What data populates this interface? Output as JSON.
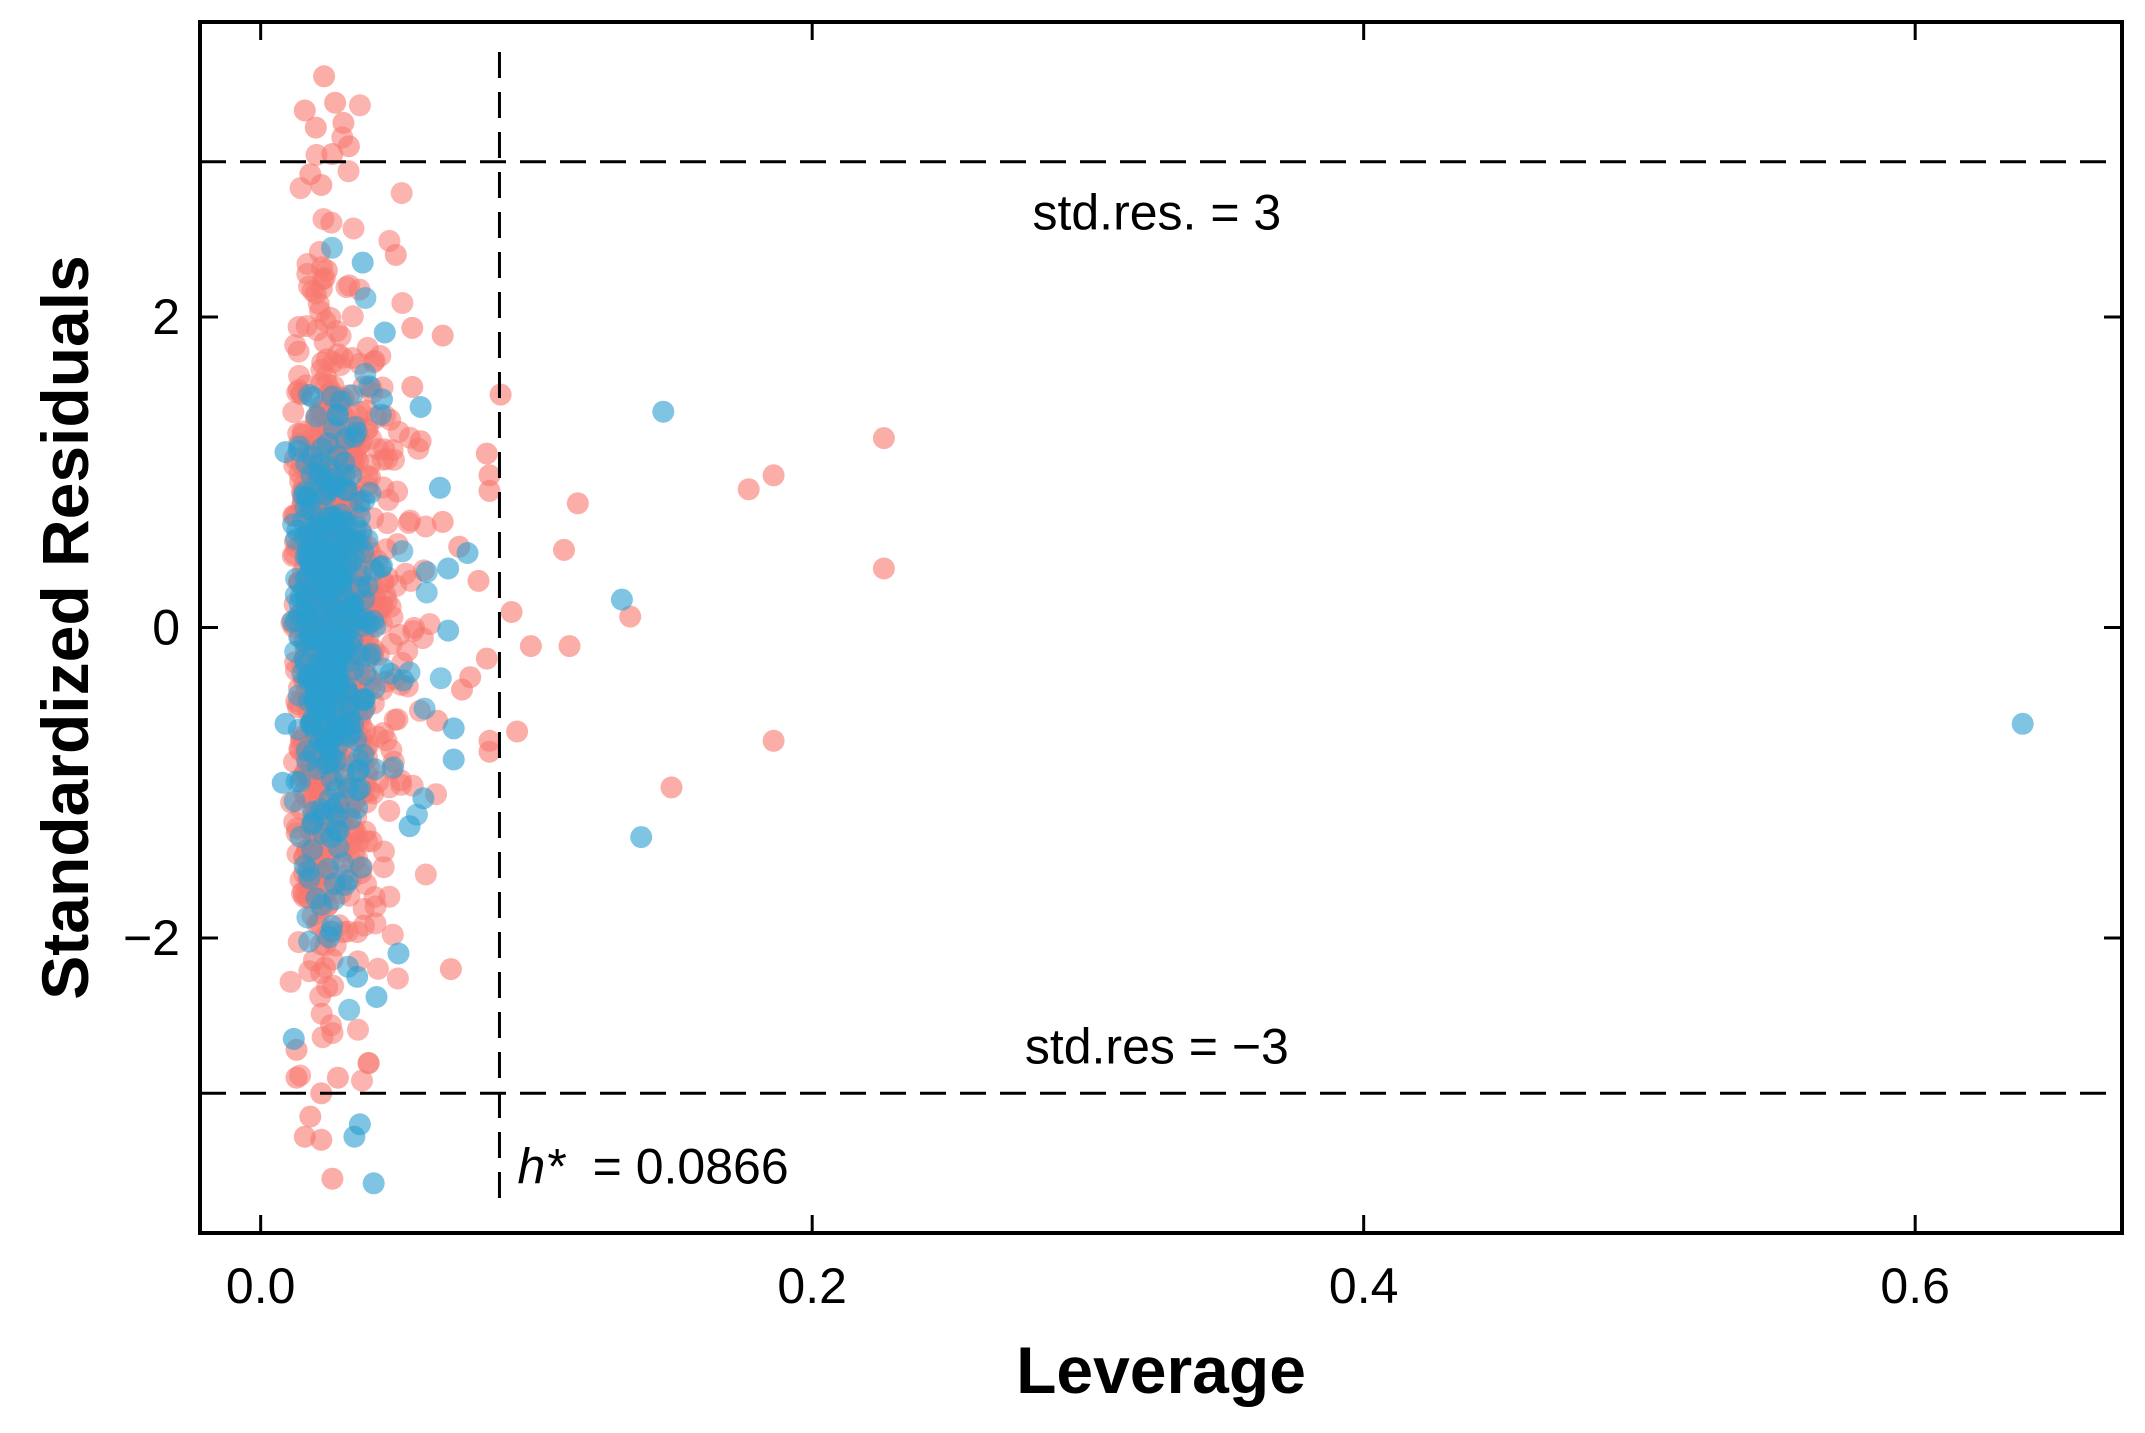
{
  "chart_data": {
    "type": "scatter",
    "title": "",
    "xlabel": "Leverage",
    "ylabel": "Standardized Residuals",
    "xlim": [
      -0.022,
      0.675
    ],
    "ylim": [
      -3.9,
      3.9
    ],
    "xticks": [
      0.0,
      0.2,
      0.4,
      0.6
    ],
    "xtick_labels": [
      "0.0",
      "0.2",
      "0.4",
      "0.6"
    ],
    "yticks": [
      -2,
      0,
      2
    ],
    "ytick_labels": [
      "−2",
      "0",
      "2"
    ],
    "grid": false,
    "legend": null,
    "colors": {
      "series_red": "#f8766d",
      "series_blue": "#2a9fd0",
      "axis": "#000000"
    },
    "reference_lines": [
      {
        "orientation": "horizontal",
        "value": 3,
        "label": "std.res. = 3"
      },
      {
        "orientation": "horizontal",
        "value": -3,
        "label": "std.res = −3"
      },
      {
        "orientation": "vertical",
        "value": 0.0866,
        "label_var": "h*",
        "label_value": "= 0.0866"
      }
    ],
    "cluster": {
      "note": "dense point cloud at low leverage",
      "x_range": [
        0.008,
        0.07
      ],
      "y_range": [
        -3.5,
        3.6
      ],
      "red_count": 900,
      "blue_count": 380
    },
    "series": [
      {
        "name": "red",
        "color": "#f8766d",
        "points": [
          [
            0.023,
            3.55
          ],
          [
            0.027,
            3.38
          ],
          [
            0.016,
            3.33
          ],
          [
            0.03,
            3.25
          ],
          [
            0.02,
            3.22
          ],
          [
            0.032,
            3.1
          ],
          [
            0.026,
            3.05
          ],
          [
            0.018,
            2.92
          ],
          [
            0.022,
            2.85
          ],
          [
            0.049,
            2.4
          ],
          [
            0.024,
            2.3
          ],
          [
            0.066,
            1.88
          ],
          [
            0.055,
            1.93
          ],
          [
            0.087,
            1.5
          ],
          [
            0.055,
            1.55
          ],
          [
            0.058,
            1.2
          ],
          [
            0.082,
            1.12
          ],
          [
            0.083,
            0.98
          ],
          [
            0.083,
            0.88
          ],
          [
            0.115,
            0.8
          ],
          [
            0.11,
            0.5
          ],
          [
            0.066,
            0.68
          ],
          [
            0.072,
            0.52
          ],
          [
            0.079,
            0.3
          ],
          [
            0.091,
            0.1
          ],
          [
            0.134,
            0.07
          ],
          [
            0.098,
            -0.12
          ],
          [
            0.112,
            -0.12
          ],
          [
            0.082,
            -0.2
          ],
          [
            0.076,
            -0.32
          ],
          [
            0.073,
            -0.4
          ],
          [
            0.064,
            -0.6
          ],
          [
            0.093,
            -0.67
          ],
          [
            0.083,
            -0.73
          ],
          [
            0.083,
            -0.8
          ],
          [
            0.069,
            -2.2
          ],
          [
            0.177,
            0.89
          ],
          [
            0.186,
            0.98
          ],
          [
            0.226,
            1.22
          ],
          [
            0.226,
            0.38
          ],
          [
            0.186,
            -0.73
          ],
          [
            0.149,
            -1.03
          ],
          [
            0.013,
            -2.72
          ],
          [
            0.013,
            -2.9
          ],
          [
            0.018,
            -3.15
          ],
          [
            0.016,
            -3.28
          ],
          [
            0.022,
            -3.3
          ],
          [
            0.026,
            -3.55
          ],
          [
            0.028,
            -2.9
          ],
          [
            0.022,
            -3.0
          ]
        ]
      },
      {
        "name": "blue",
        "color": "#2a9fd0",
        "points": [
          [
            0.037,
            2.35
          ],
          [
            0.045,
            1.9
          ],
          [
            0.044,
            1.47
          ],
          [
            0.058,
            1.42
          ],
          [
            0.146,
            1.39
          ],
          [
            0.065,
            0.9
          ],
          [
            0.075,
            0.48
          ],
          [
            0.068,
            0.38
          ],
          [
            0.131,
            0.18
          ],
          [
            0.068,
            -0.02
          ],
          [
            0.07,
            -0.65
          ],
          [
            0.07,
            -0.85
          ],
          [
            0.059,
            -1.1
          ],
          [
            0.054,
            -1.28
          ],
          [
            0.138,
            -1.35
          ],
          [
            0.05,
            -2.1
          ],
          [
            0.035,
            -2.25
          ],
          [
            0.042,
            -2.38
          ],
          [
            0.012,
            -2.65
          ],
          [
            0.036,
            -3.2
          ],
          [
            0.034,
            -3.28
          ],
          [
            0.041,
            -3.58
          ],
          [
            0.009,
            -0.62
          ],
          [
            0.008,
            -1.0
          ],
          [
            0.009,
            1.13
          ],
          [
            0.639,
            -0.62
          ]
        ]
      }
    ]
  }
}
